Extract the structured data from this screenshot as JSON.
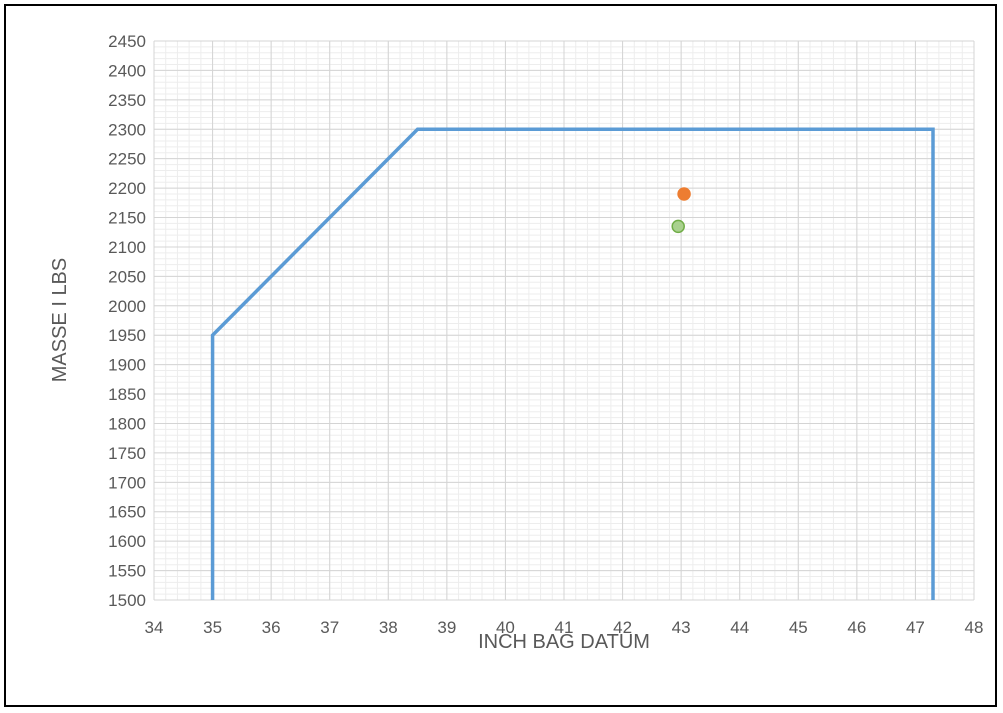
{
  "chart_data": {
    "type": "scatter",
    "xlabel": "INCH BAG DATUM",
    "ylabel": "MASSE I LBS",
    "xlim": [
      34,
      48
    ],
    "ylim": [
      1500,
      2450
    ],
    "x_ticks": [
      34,
      35,
      36,
      37,
      38,
      39,
      40,
      41,
      42,
      43,
      44,
      45,
      46,
      47,
      48
    ],
    "y_ticks": [
      1500,
      1550,
      1600,
      1650,
      1700,
      1750,
      1800,
      1850,
      1900,
      1950,
      2000,
      2050,
      2100,
      2150,
      2200,
      2250,
      2300,
      2350,
      2400,
      2450
    ],
    "grid": true,
    "series": [
      {
        "mode": "line",
        "color": "#5b9bd5",
        "points": [
          [
            35,
            1500
          ],
          [
            35,
            1950
          ],
          [
            38.5,
            2300
          ],
          [
            47.3,
            2300
          ],
          [
            47.3,
            1500
          ]
        ]
      },
      {
        "mode": "marker",
        "color": "#ed7d31",
        "points": [
          [
            43.05,
            2190
          ]
        ]
      },
      {
        "mode": "marker",
        "color": "#a9d18e",
        "stroke": "#70ad47",
        "points": [
          [
            42.95,
            2135
          ]
        ]
      }
    ]
  }
}
